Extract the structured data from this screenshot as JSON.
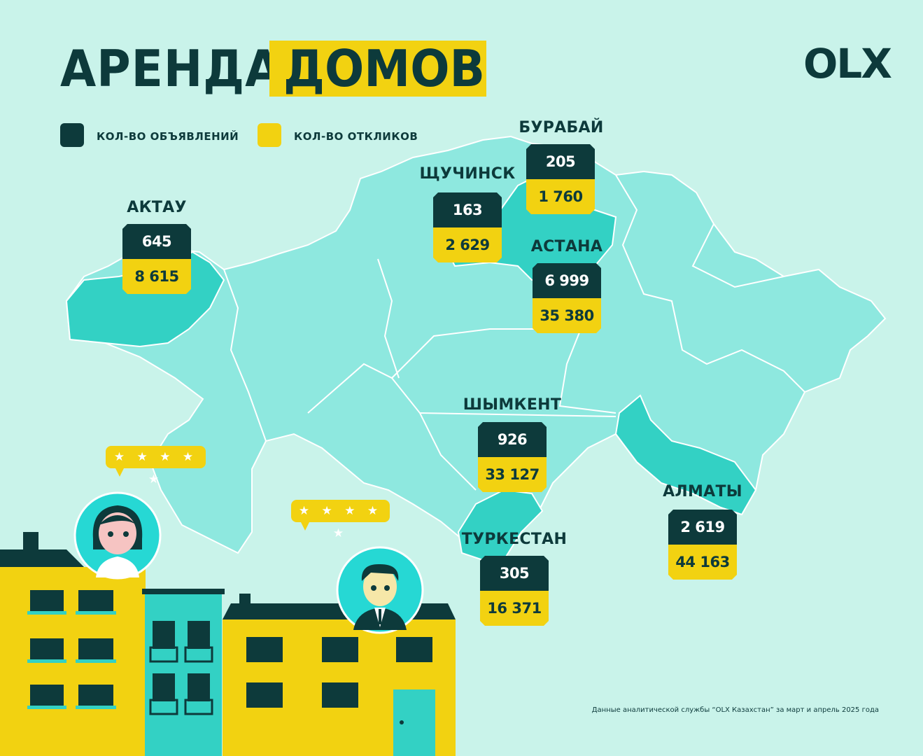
{
  "title": {
    "part1": "АРЕНДА",
    "part2": "ДОМОВ"
  },
  "logo": "OLX",
  "legend": {
    "listings": {
      "label": "КОЛ-ВО ОБЪЯВЛЕНИЙ",
      "color": "#0d3a3b"
    },
    "responses": {
      "label": "КОЛ-ВО ОТКЛИКОВ",
      "color": "#f2d211"
    }
  },
  "cities": [
    {
      "name": "АКТАУ",
      "listings": "645",
      "responses": "8 615"
    },
    {
      "name": "ЩУЧИНСК",
      "listings": "163",
      "responses": "2 629"
    },
    {
      "name": "БУРАБАЙ",
      "listings": "205",
      "responses": "1 760"
    },
    {
      "name": "АСТАНА",
      "listings": "6 999",
      "responses": "35 380"
    },
    {
      "name": "ШЫМКЕНТ",
      "listings": "926",
      "responses": "33 127"
    },
    {
      "name": "ТУРКЕСТАН",
      "listings": "305",
      "responses": "16 371"
    },
    {
      "name": "АЛМАТЫ",
      "listings": "2 619",
      "responses": "44 163"
    }
  ],
  "ratings": [
    "★ ★ ★ ★ ★",
    "★ ★ ★ ★ ★"
  ],
  "footnote": "Данные аналитической службы “OLX Казахстан” за март и апрель 2025 года",
  "colors": {
    "background": "#c9f3ea",
    "map_base": "#8ee8df",
    "map_highlight": "#33d1c4",
    "dark": "#0d3a3b",
    "yellow": "#f2d211"
  }
}
